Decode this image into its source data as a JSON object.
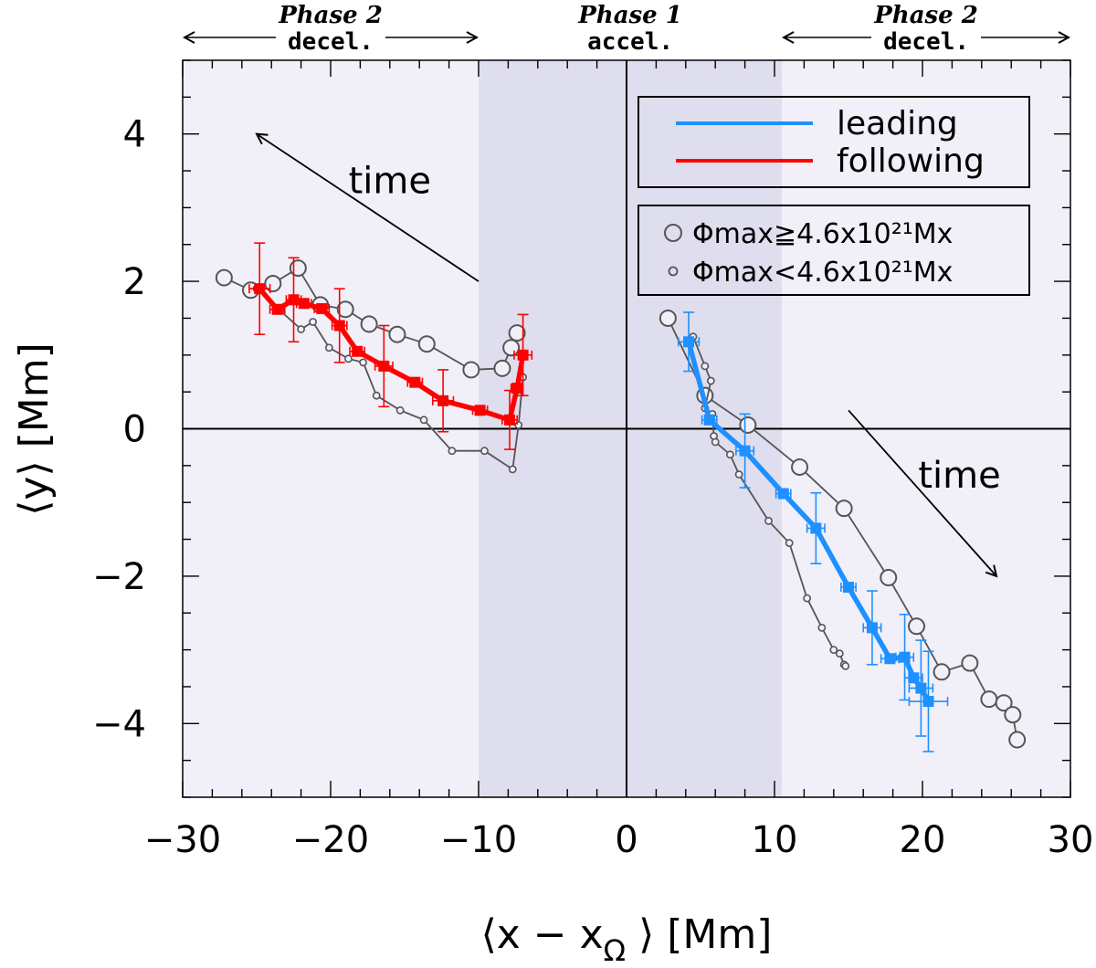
{
  "chart_data": {
    "type": "scatter",
    "title": "",
    "xlabel": "⟨x − x",
    "xlabel_sub": "Ω",
    "xlabel_tail": "⟩ [Mm]",
    "ylabel": "⟨y⟩ [Mm]",
    "xlim": [
      -30,
      30
    ],
    "ylim": [
      -5,
      5
    ],
    "x_ticks": [
      -30,
      -20,
      -10,
      0,
      10,
      20,
      30
    ],
    "y_ticks": [
      -4,
      -2,
      0,
      2,
      4
    ],
    "x_tick_labels": [
      "−30",
      "−20",
      "−10",
      "0",
      "10",
      "20",
      "30"
    ],
    "y_tick_labels": [
      "−4",
      "−2",
      "0",
      "2",
      "4"
    ],
    "grid": false,
    "zero_lines": true,
    "phase1_band": [
      -10,
      10.5
    ],
    "phases": [
      {
        "name": "Phase 2",
        "sub": "decel.",
        "from": -30,
        "to": -10
      },
      {
        "name": "Phase 1",
        "sub": "accel.",
        "from": -10,
        "to": 10.5
      },
      {
        "name": "Phase 2",
        "sub": "decel.",
        "from": 10.5,
        "to": 30
      }
    ],
    "legend": {
      "position": "top-right",
      "entries": [
        {
          "label": "leading",
          "color": "#1e90ff"
        },
        {
          "label": "following",
          "color": "#ff0000"
        }
      ]
    },
    "legend_markers": {
      "position": "right",
      "entries": [
        {
          "label": "Φmax≧4.6x10²¹Mx",
          "marker": "large-circle"
        },
        {
          "label": "Φmax<4.6x10²¹Mx",
          "marker": "small-circle"
        }
      ]
    },
    "annotations": [
      {
        "text": "time",
        "x": -16,
        "y": 3.2,
        "arrow_from": [
          -10,
          2
        ],
        "arrow_to": [
          -25,
          4
        ]
      },
      {
        "text": "time",
        "x": 22.5,
        "y": -0.8,
        "arrow_from": [
          15,
          0.25
        ],
        "arrow_to": [
          25,
          -2
        ]
      }
    ],
    "series": [
      {
        "name": "following",
        "color": "#ff0000",
        "style": "thick-line-errorbars",
        "x": [
          -24.8,
          -23.6,
          -22.5,
          -21.8,
          -20.6,
          -19.4,
          -18.2,
          -16.4,
          -14.3,
          -12.4,
          -9.9,
          -7.9,
          -7.4,
          -7.0
        ],
        "y": [
          1.9,
          1.62,
          1.75,
          1.7,
          1.63,
          1.4,
          1.05,
          0.85,
          0.63,
          0.38,
          0.25,
          0.12,
          0.55,
          1.0
        ],
        "yerr": [
          0.62,
          0.0,
          0.57,
          0.0,
          0.0,
          0.5,
          0.0,
          0.55,
          0.0,
          0.42,
          0.0,
          0.4,
          0.0,
          0.55
        ],
        "xerr": [
          0.7,
          0.5,
          0.5,
          0.5,
          0.5,
          0.5,
          0.5,
          0.6,
          0.5,
          0.7,
          0.5,
          0.5,
          0.4,
          0.6
        ]
      },
      {
        "name": "leading",
        "color": "#1e90ff",
        "style": "thick-line-errorbars",
        "x": [
          4.2,
          5.6,
          8.0,
          10.6,
          12.8,
          15.0,
          16.6,
          17.8,
          18.8,
          19.4,
          19.9,
          20.4
        ],
        "y": [
          1.18,
          0.12,
          -0.3,
          -0.88,
          -1.35,
          -2.15,
          -2.7,
          -3.12,
          -3.1,
          -3.38,
          -3.52,
          -3.7
        ],
        "yerr": [
          0.4,
          0.0,
          0.5,
          0.0,
          0.48,
          0.0,
          0.5,
          0.0,
          0.58,
          0.0,
          0.65,
          0.68
        ],
        "xerr": [
          0.7,
          0.5,
          0.6,
          0.5,
          0.6,
          0.5,
          0.6,
          0.6,
          0.6,
          0.6,
          0.8,
          1.3
        ]
      },
      {
        "name": "Φmax≧4.6x10²¹Mx following",
        "color": "#555555",
        "style": "line-large-circles",
        "x": [
          -27.2,
          -25.4,
          -23.9,
          -22.2,
          -20.7,
          -19.0,
          -17.4,
          -15.5,
          -13.5,
          -10.5,
          -8.4,
          -7.8,
          -7.4
        ],
        "y": [
          2.05,
          1.88,
          1.97,
          2.18,
          1.68,
          1.62,
          1.42,
          1.28,
          1.15,
          0.8,
          0.82,
          1.1,
          1.3
        ]
      },
      {
        "name": "Φmax<4.6x10²¹Mx following",
        "color": "#555555",
        "style": "line-small-circles",
        "x": [
          -25.0,
          -23.4,
          -22.0,
          -21.2,
          -20.1,
          -18.8,
          -17.8,
          -16.9,
          -15.3,
          -13.7,
          -11.8,
          -9.6,
          -7.7,
          -7.3,
          -7.0
        ],
        "y": [
          1.9,
          1.6,
          1.35,
          1.45,
          1.1,
          0.95,
          0.9,
          0.45,
          0.25,
          0.12,
          -0.3,
          -0.3,
          -0.55,
          0.05,
          0.7
        ]
      },
      {
        "name": "Φmax≧4.6x10²¹Mx leading",
        "color": "#555555",
        "style": "line-large-circles",
        "x": [
          2.8,
          5.3,
          8.2,
          11.7,
          14.7,
          17.7,
          19.6,
          21.3,
          23.2,
          24.5,
          25.5,
          26.1,
          26.4
        ],
        "y": [
          1.5,
          0.45,
          0.05,
          -0.52,
          -1.08,
          -2.02,
          -2.68,
          -3.3,
          -3.18,
          -3.67,
          -3.72,
          -3.88,
          -4.22
        ]
      },
      {
        "name": "Φmax<4.6x10²¹Mx leading",
        "color": "#555555",
        "style": "line-small-circles",
        "x": [
          4.5,
          5.3,
          5.7,
          5.3,
          5.8,
          5.9,
          6.0,
          7.0,
          7.6,
          9.6,
          11.0,
          12.2,
          13.2,
          14.0,
          14.4,
          14.7,
          14.8
        ],
        "y": [
          1.25,
          0.85,
          0.65,
          0.28,
          0.2,
          -0.1,
          -0.18,
          -0.35,
          -0.62,
          -1.25,
          -1.55,
          -2.3,
          -2.7,
          -3.0,
          -3.05,
          -3.2,
          -3.22
        ]
      }
    ]
  }
}
